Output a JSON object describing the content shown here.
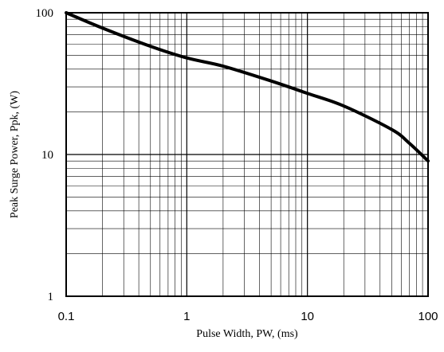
{
  "chart_data": {
    "type": "line",
    "x_scale": "log",
    "y_scale": "log",
    "xlim": [
      0.1,
      100
    ],
    "ylim": [
      1,
      100
    ],
    "xlabel": "Pulse Width, PW, (ms)",
    "ylabel": "Peak Surge Power, Ppk, (W)",
    "x_ticks": [
      {
        "value": 0.1,
        "label": "0.1"
      },
      {
        "value": 1,
        "label": "1"
      },
      {
        "value": 10,
        "label": "10"
      },
      {
        "value": 100,
        "label": "100"
      }
    ],
    "y_ticks": [
      {
        "value": 1,
        "label": "1"
      },
      {
        "value": 10,
        "label": "10"
      },
      {
        "value": 100,
        "label": "100"
      }
    ],
    "grid": true,
    "series": [
      {
        "color": "#000000",
        "x": [
          0.1,
          0.2,
          0.5,
          1,
          2,
          5,
          10,
          20,
          50,
          70,
          100
        ],
        "y": [
          100,
          78,
          58,
          48,
          42,
          33,
          27,
          22,
          15,
          12,
          9
        ]
      }
    ]
  }
}
